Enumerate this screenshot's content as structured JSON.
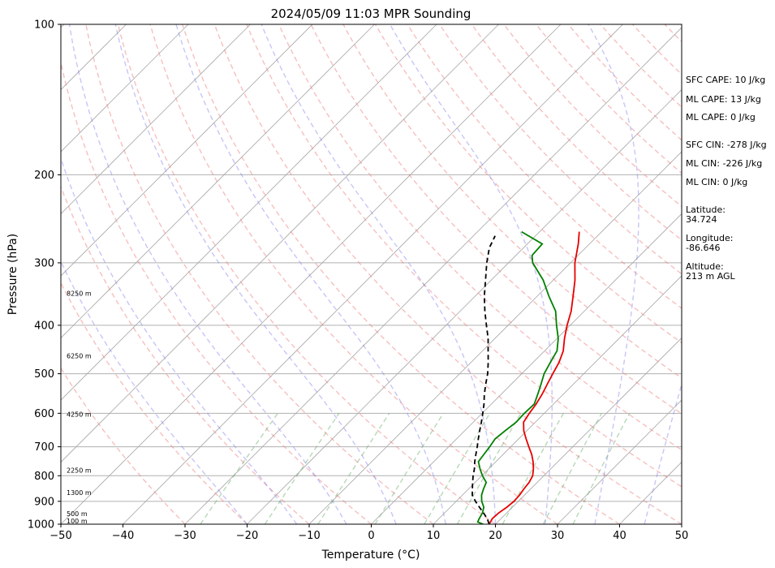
{
  "chart_data": {
    "type": "line",
    "title": "2024/05/09 11:03 MPR Sounding",
    "xlabel": "Temperature (°C)",
    "ylabel": "Pressure (hPa)",
    "xlim": [
      -50,
      50
    ],
    "ylim": [
      1000,
      100
    ],
    "y_scale": "log",
    "skew": "skew-T",
    "grid": true,
    "x_ticks": [
      "−50",
      "−40",
      "−30",
      "−20",
      "−10",
      "0",
      "10",
      "20",
      "30",
      "40",
      "50"
    ],
    "y_ticks": [
      "100",
      "200",
      "300",
      "400",
      "500",
      "600",
      "700",
      "800",
      "900",
      "1000"
    ],
    "series": [
      {
        "color": "#e60000",
        "points": [
          [
            1000,
            19
          ],
          [
            975,
            18.6
          ],
          [
            950,
            18.7
          ],
          [
            925,
            19.1
          ],
          [
            900,
            19.3
          ],
          [
            875,
            19.2
          ],
          [
            850,
            18.9
          ],
          [
            825,
            18.7
          ],
          [
            800,
            18.2
          ],
          [
            775,
            17.2
          ],
          [
            750,
            16.0
          ],
          [
            725,
            14.6
          ],
          [
            700,
            12.9
          ],
          [
            675,
            11.2
          ],
          [
            650,
            9.5
          ],
          [
            625,
            8.1
          ],
          [
            600,
            7.6
          ],
          [
            575,
            7.2
          ],
          [
            550,
            6.6
          ],
          [
            525,
            5.8
          ],
          [
            500,
            5.0
          ],
          [
            475,
            4.2
          ],
          [
            450,
            3.0
          ],
          [
            425,
            1.2
          ],
          [
            400,
            -0.5
          ],
          [
            375,
            -2.1
          ],
          [
            350,
            -4.2
          ],
          [
            325,
            -6.5
          ],
          [
            300,
            -9.3
          ],
          [
            275,
            -11.8
          ],
          [
            260,
            -13.6
          ]
        ]
      },
      {
        "color": "#008000",
        "points": [
          [
            1000,
            18
          ],
          [
            990,
            16.8
          ],
          [
            975,
            16.5
          ],
          [
            950,
            16.1
          ],
          [
            925,
            15.4
          ],
          [
            900,
            14.1
          ],
          [
            875,
            13.1
          ],
          [
            850,
            12.4
          ],
          [
            825,
            11.8
          ],
          [
            800,
            10.1
          ],
          [
            775,
            8.6
          ],
          [
            750,
            7.2
          ],
          [
            725,
            6.9
          ],
          [
            700,
            6.6
          ],
          [
            675,
            6.2
          ],
          [
            650,
            6.5
          ],
          [
            625,
            6.9
          ],
          [
            600,
            6.8
          ],
          [
            575,
            6.9
          ],
          [
            550,
            5.9
          ],
          [
            525,
            4.8
          ],
          [
            500,
            3.6
          ],
          [
            475,
            2.8
          ],
          [
            450,
            2.0
          ],
          [
            425,
            0.2
          ],
          [
            400,
            -2.2
          ],
          [
            375,
            -4.6
          ],
          [
            350,
            -8.1
          ],
          [
            325,
            -11.6
          ],
          [
            300,
            -16.1
          ],
          [
            290,
            -17.4
          ],
          [
            275,
            -17.6
          ],
          [
            260,
            -22.9
          ]
        ]
      },
      {
        "color": "#000000",
        "dashed": true,
        "points": [
          [
            1000,
            19
          ],
          [
            975,
            17.8
          ],
          [
            950,
            16.3
          ],
          [
            925,
            14.7
          ],
          [
            900,
            13.1
          ],
          [
            875,
            11.6
          ],
          [
            850,
            10.6
          ],
          [
            825,
            9.6
          ],
          [
            800,
            8.6
          ],
          [
            775,
            7.7
          ],
          [
            750,
            6.6
          ],
          [
            725,
            5.6
          ],
          [
            700,
            4.6
          ],
          [
            675,
            3.5
          ],
          [
            650,
            2.4
          ],
          [
            625,
            1.3
          ],
          [
            600,
            0.1
          ],
          [
            575,
            -1.2
          ],
          [
            550,
            -2.7
          ],
          [
            525,
            -4.1
          ],
          [
            500,
            -5.5
          ],
          [
            475,
            -7.2
          ],
          [
            450,
            -9.1
          ],
          [
            425,
            -11.1
          ],
          [
            400,
            -13.5
          ],
          [
            375,
            -16.0
          ],
          [
            350,
            -18.5
          ],
          [
            325,
            -20.9
          ],
          [
            300,
            -23.5
          ],
          [
            280,
            -25.5
          ],
          [
            265,
            -26.5
          ]
        ]
      }
    ],
    "height_labels": [
      "8250 m",
      "6250 m",
      "4250 m",
      "2250 m",
      "1300 m",
      "500 m",
      "100 m"
    ],
    "height_label_pressures": [
      345,
      460,
      603,
      780,
      864,
      953,
      985
    ]
  },
  "info": {
    "sfc_cape": "SFC CAPE: 10 J/kg",
    "ml_cape_1": "ML CAPE: 13 J/kg",
    "ml_cape_2": "ML CAPE: 0 J/kg",
    "sfc_cin": "SFC CIN: -278 J/kg",
    "ml_cin_1": "ML CIN: -226 J/kg",
    "ml_cin_2": "ML CIN: 0 J/kg",
    "latitude": "Latitude:\n34.724",
    "longitude": "Longitude:\n-86.646",
    "altitude": "Altitude:\n213 m AGL"
  }
}
